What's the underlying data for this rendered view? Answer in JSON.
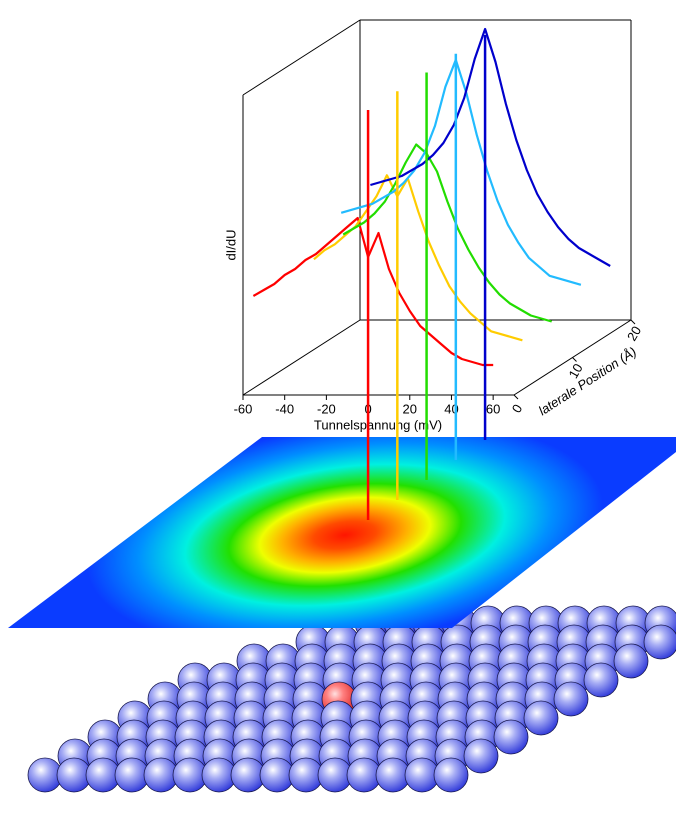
{
  "chart_data": {
    "type": "waterfall",
    "x_label": "Tunnelspannung (mV)",
    "y_label": "dI/dU",
    "z_label": "laterale Position (Å)",
    "xlim": [
      -60,
      70
    ],
    "xticks": [
      -60,
      -40,
      -20,
      0,
      20,
      40,
      60
    ],
    "ylim": [
      0,
      1
    ],
    "zlim": [
      0,
      20
    ],
    "zticks": [
      0,
      10,
      20
    ],
    "x": [
      -55,
      -50,
      -45,
      -40,
      -35,
      -30,
      -25,
      -20,
      -15,
      -10,
      -5,
      0,
      5,
      10,
      15,
      20,
      25,
      30,
      35,
      40,
      45,
      50,
      55,
      60
    ],
    "series": [
      {
        "color": "#ff0000",
        "position": 0,
        "values": [
          0.33,
          0.35,
          0.37,
          0.4,
          0.42,
          0.45,
          0.47,
          0.5,
          0.53,
          0.56,
          0.59,
          0.46,
          0.54,
          0.42,
          0.34,
          0.28,
          0.23,
          0.2,
          0.17,
          0.14,
          0.12,
          0.11,
          0.1,
          0.1
        ]
      },
      {
        "color": "#ffcc00",
        "position": 5,
        "values": [
          null,
          null,
          null,
          0.39,
          0.42,
          0.44,
          0.47,
          0.5,
          0.55,
          0.6,
          0.67,
          0.6,
          0.66,
          0.55,
          0.45,
          0.37,
          0.3,
          0.25,
          0.21,
          0.18,
          0.15,
          0.14,
          0.13,
          0.12
        ]
      },
      {
        "color": "#22dd00",
        "position": 10,
        "values": [
          null,
          null,
          null,
          0.41,
          0.43,
          0.45,
          0.48,
          0.52,
          0.58,
          0.65,
          0.71,
          0.68,
          0.62,
          0.52,
          0.43,
          0.36,
          0.3,
          0.25,
          0.21,
          0.18,
          0.16,
          0.14,
          0.13,
          0.12
        ]
      },
      {
        "color": "#22bbff",
        "position": 15,
        "values": [
          0.42,
          0.43,
          0.44,
          0.45,
          0.47,
          0.49,
          0.52,
          0.56,
          0.62,
          0.71,
          0.84,
          0.93,
          0.82,
          0.68,
          0.56,
          0.46,
          0.38,
          0.32,
          0.27,
          0.24,
          0.21,
          0.2,
          0.19,
          0.18
        ]
      },
      {
        "color": "#0000cc",
        "position": 20,
        "values": [
          0.45,
          0.46,
          0.47,
          0.48,
          0.5,
          0.52,
          0.55,
          0.59,
          0.65,
          0.74,
          0.87,
          0.97,
          0.86,
          0.72,
          0.6,
          0.5,
          0.42,
          0.36,
          0.31,
          0.27,
          0.24,
          0.22,
          0.2,
          0.18
        ]
      }
    ]
  }
}
